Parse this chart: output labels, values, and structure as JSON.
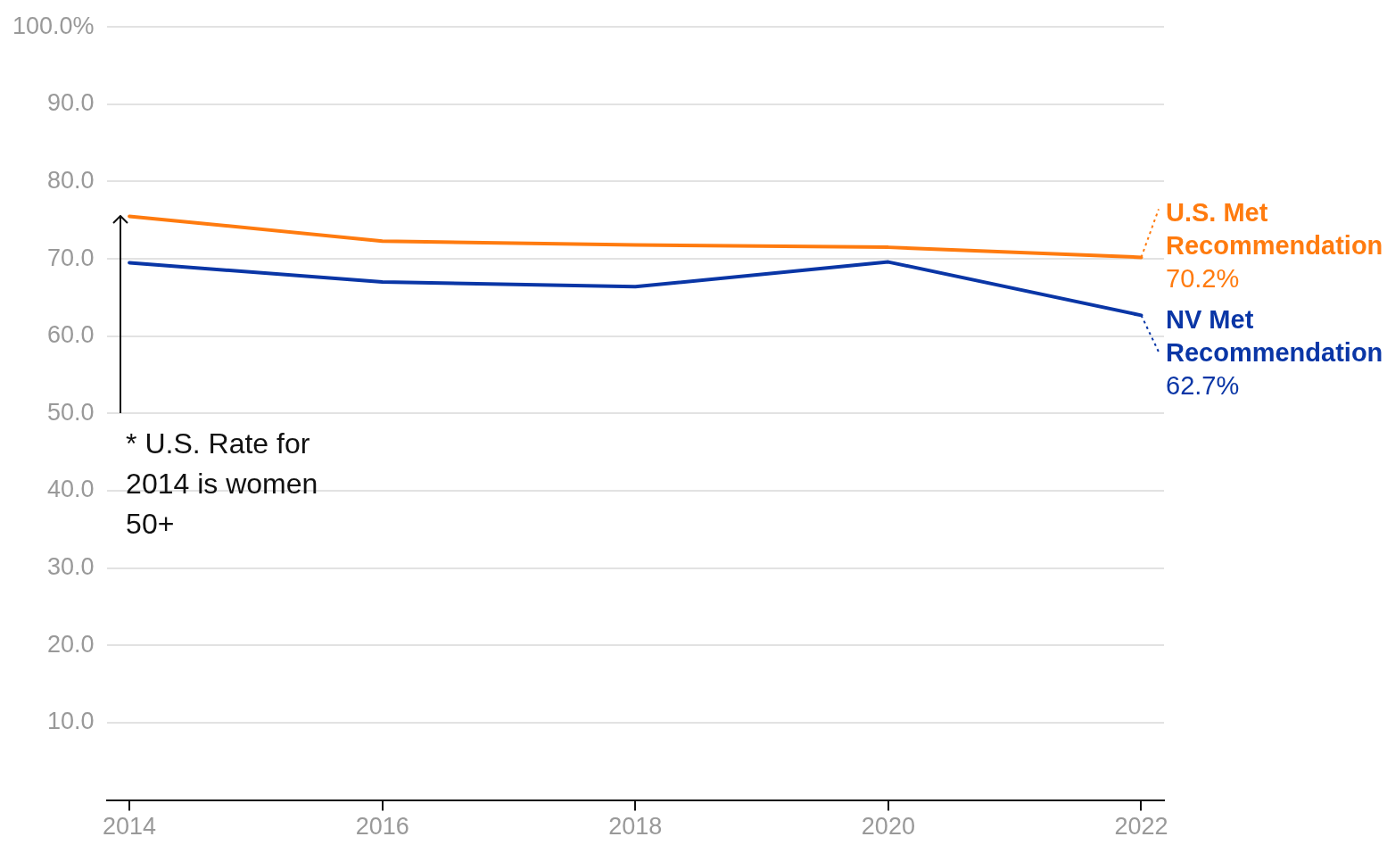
{
  "chart_data": {
    "type": "line",
    "x": [
      2014,
      2016,
      2018,
      2020,
      2022
    ],
    "series": [
      {
        "name": "U.S. Met Recommendation",
        "color": "#ff7b0f",
        "values": [
          75.5,
          72.3,
          71.8,
          71.5,
          70.2
        ],
        "value_labels": [
          null,
          null,
          null,
          null,
          "70.2%"
        ]
      },
      {
        "name": "NV Met Recommendation",
        "color": "#0a36a6",
        "values": [
          69.5,
          67.0,
          66.4,
          69.6,
          62.7
        ],
        "value_labels": [
          null,
          null,
          null,
          null,
          "62.7%"
        ]
      }
    ],
    "xlim": [
      2013.82,
      2022.18
    ],
    "xticks": [
      2014,
      2016,
      2018,
      2020,
      2022
    ],
    "ylim": [
      0,
      100
    ],
    "yticks": [
      {
        "value": 0,
        "label": null
      },
      {
        "value": 10,
        "label": "10.0"
      },
      {
        "value": 20,
        "label": "20.0"
      },
      {
        "value": 30,
        "label": "30.0"
      },
      {
        "value": 40,
        "label": "40.0"
      },
      {
        "value": 50,
        "label": "50.0"
      },
      {
        "value": 60,
        "label": "60.0"
      },
      {
        "value": 70,
        "label": "70.0"
      },
      {
        "value": 80,
        "label": "80.0"
      },
      {
        "value": 90,
        "label": "90.0"
      },
      {
        "value": 100,
        "label": "100.0%"
      }
    ],
    "grid": "y",
    "legend": "right",
    "marker": "none",
    "line_style": "solid",
    "annotations": [
      "* U.S. Rate for 2014 is women 50+"
    ]
  }
}
